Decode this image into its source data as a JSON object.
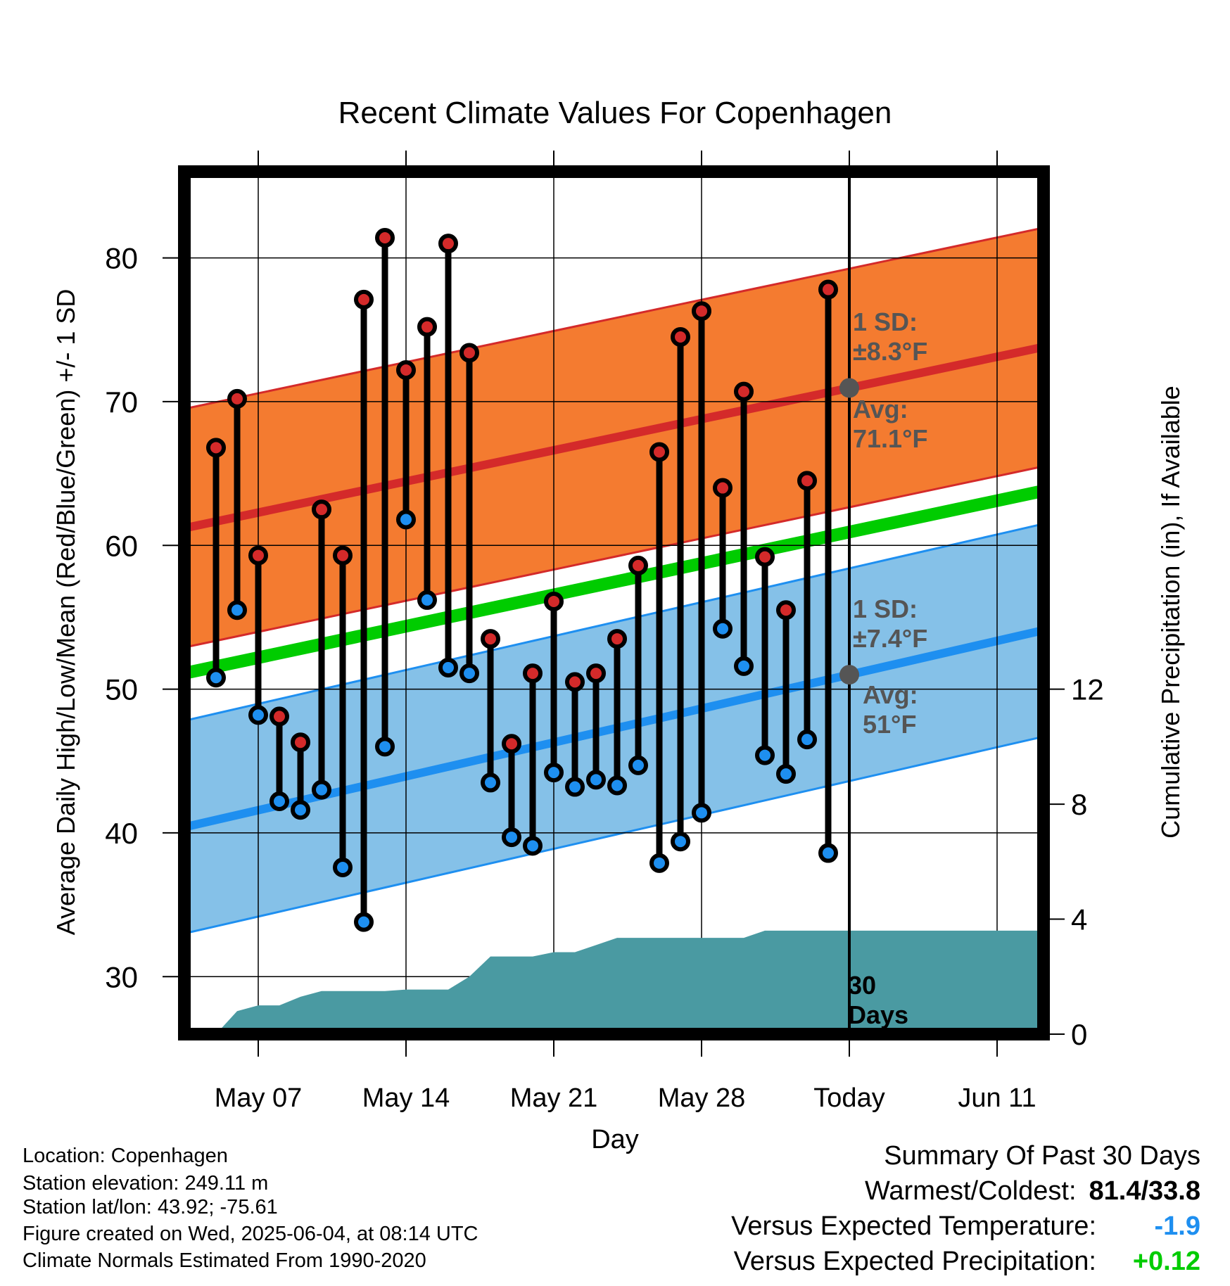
{
  "chart_data": {
    "type": "line",
    "title": "Recent Climate Values For Copenhagen",
    "xlabel": "Day",
    "ylabel": "Average Daily High/Low/Mean (Red/Blue/Green) +/- 1 SD",
    "y2label": "Cumulative Precipitation (in), If Available",
    "x_tick_labels": [
      "May 07",
      "May 14",
      "May 21",
      "May 28",
      "Today",
      "Jun 11"
    ],
    "x_tick_days": [
      3,
      10,
      17,
      24,
      31,
      38
    ],
    "x_range_days": [
      -0.5,
      40.2
    ],
    "today_day": 31,
    "ylim": [
      26,
      86
    ],
    "y_ticks": [
      30,
      40,
      50,
      60,
      70,
      80
    ],
    "y2lim": [
      0,
      30
    ],
    "y2_ticks": [
      0,
      4,
      8,
      12
    ],
    "grid": true,
    "highs": [
      66.8,
      70.2,
      59.3,
      48.1,
      46.3,
      62.5,
      59.3,
      77.1,
      81.4,
      72.2,
      75.2,
      81.0,
      73.4,
      53.5,
      46.2,
      51.1,
      56.1,
      50.5,
      51.1,
      53.5,
      58.6,
      66.5,
      74.5,
      76.3,
      64.0,
      70.7,
      59.2,
      55.5,
      64.5,
      77.8
    ],
    "lows": [
      50.8,
      55.5,
      48.2,
      42.2,
      41.6,
      43.0,
      37.6,
      33.8,
      46.0,
      61.8,
      56.2,
      51.5,
      51.1,
      43.5,
      39.7,
      39.1,
      44.2,
      43.2,
      43.7,
      43.3,
      44.7,
      37.9,
      39.4,
      41.4,
      54.2,
      51.6,
      45.4,
      44.1,
      46.5,
      38.6
    ],
    "normal_high": {
      "start": 61.2,
      "end": 73.8,
      "sd": 8.3
    },
    "normal_low": {
      "start": 40.4,
      "end": 54.1,
      "sd": 7.4
    },
    "normal_mean": {
      "start": 51.1,
      "end": 63.8
    },
    "precip_days": [
      0,
      1,
      2,
      3,
      4,
      5,
      6,
      7,
      8,
      9,
      10,
      11,
      12,
      13,
      14,
      15,
      16,
      17,
      18,
      19,
      20,
      21,
      22,
      23,
      24,
      25,
      26,
      27,
      28,
      29,
      30,
      40.2
    ],
    "precip_cumulative": [
      0,
      0,
      0.8,
      1.0,
      1.0,
      1.3,
      1.5,
      1.5,
      1.5,
      1.5,
      1.55,
      1.55,
      1.55,
      2.0,
      2.7,
      2.7,
      2.7,
      2.85,
      2.85,
      3.1,
      3.35,
      3.35,
      3.35,
      3.35,
      3.35,
      3.35,
      3.35,
      3.6,
      3.6,
      3.6,
      3.6,
      3.6
    ],
    "annotations": {
      "high_sd": [
        "1 SD:",
        "±8.3°F"
      ],
      "high_avg": [
        "Avg:",
        "71.1°F"
      ],
      "low_sd": [
        "1 SD:",
        "±7.4°F"
      ],
      "low_avg": [
        "Avg:",
        "51°F"
      ],
      "days": [
        "30",
        "Days"
      ]
    },
    "colors": {
      "high_band": "#f47b30",
      "high_line": "#d42a2a",
      "low_band": "#85c1e8",
      "low_line": "#1e8ff0",
      "mean_line": "#00cc00",
      "precip": "#4a9aa2",
      "high_dot": "#d42a2a",
      "low_dot": "#1e8ff0",
      "annotation": "#555555"
    }
  },
  "info": {
    "location": "Location: Copenhagen",
    "elevation": "Station elevation: 249.11 m",
    "latlon": "Station lat/lon: 43.92; -75.61",
    "created": "Figure created on Wed, 2025-06-04, at 08:14 UTC",
    "normals": "Climate Normals Estimated From 1990-2020"
  },
  "summary": {
    "heading": "Summary Of Past 30 Days",
    "warm_cold_label": "Warmest/Coldest:",
    "warm_cold_value": "81.4/33.8",
    "temp_label": "Versus Expected Temperature:",
    "temp_value": "-1.9",
    "temp_color": "#1e8ff0",
    "precip_label": "Versus Expected Precipitation:",
    "precip_value": "+0.12",
    "precip_color": "#00cc00"
  }
}
